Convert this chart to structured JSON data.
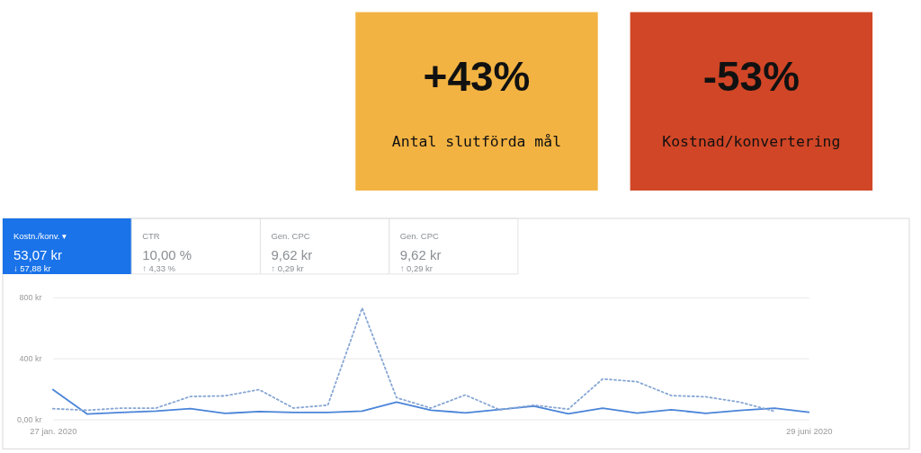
{
  "chart_data": [
    {
      "type": "other",
      "title": "+43%",
      "subtitle": "Antal slutförda mål",
      "color": "#f3b342"
    },
    {
      "type": "other",
      "title": "-53%",
      "subtitle": "Kostnad/konvertering",
      "color": "#d14626"
    },
    {
      "type": "line",
      "x": [
        "2020-01-27",
        "2020-02-03",
        "2020-02-10",
        "2020-02-17",
        "2020-02-24",
        "2020-03-02",
        "2020-03-09",
        "2020-03-16",
        "2020-03-23",
        "2020-03-30",
        "2020-04-06",
        "2020-04-13",
        "2020-04-20",
        "2020-04-27",
        "2020-05-04",
        "2020-05-11",
        "2020-05-18",
        "2020-05-25",
        "2020-06-01",
        "2020-06-08",
        "2020-06-15",
        "2020-06-22",
        "2020-06-29"
      ],
      "series": [
        {
          "color": "#4a84d8",
          "line_style": "solid",
          "values": [
            195,
            35,
            45,
            54,
            70,
            39,
            51,
            45,
            45,
            54,
            113,
            60,
            43,
            65,
            87,
            36,
            73,
            41,
            63,
            40,
            59,
            73,
            47
          ]
        },
        {
          "color": "#86a6d4",
          "line_style": "dotted",
          "values": [
            70,
            60,
            74,
            74,
            150,
            154,
            195,
            74,
            93,
            730,
            142,
            74,
            160,
            63,
            93,
            67,
            265,
            247,
            156,
            148,
            113,
            53,
            null
          ]
        }
      ],
      "xlim": [
        "2020-01-27",
        "2020-06-29"
      ],
      "xticks": [
        {
          "value": "2020-01-27",
          "label": "27 jan. 2020"
        },
        {
          "value": "2020-06-29",
          "label": "29 juni 2020"
        }
      ],
      "ylim": [
        0,
        800
      ],
      "yticks": [
        {
          "value": 0,
          "label": "0,00 kr"
        },
        {
          "value": 400,
          "label": "400 kr"
        },
        {
          "value": 800,
          "label": "800 kr"
        }
      ],
      "grid": "y",
      "annotations": [
        "Kostn./konv. ▾",
        "53,07 kr",
        "↓ 57,88 kr",
        "CTR",
        "10,00 %",
        "↑ 4,33 %",
        "Gen. CPC",
        "9,62 kr",
        "↑ 0,29 kr",
        "Gen. CPC",
        "9,62 kr",
        "↑ 0,29 kr"
      ]
    }
  ]
}
